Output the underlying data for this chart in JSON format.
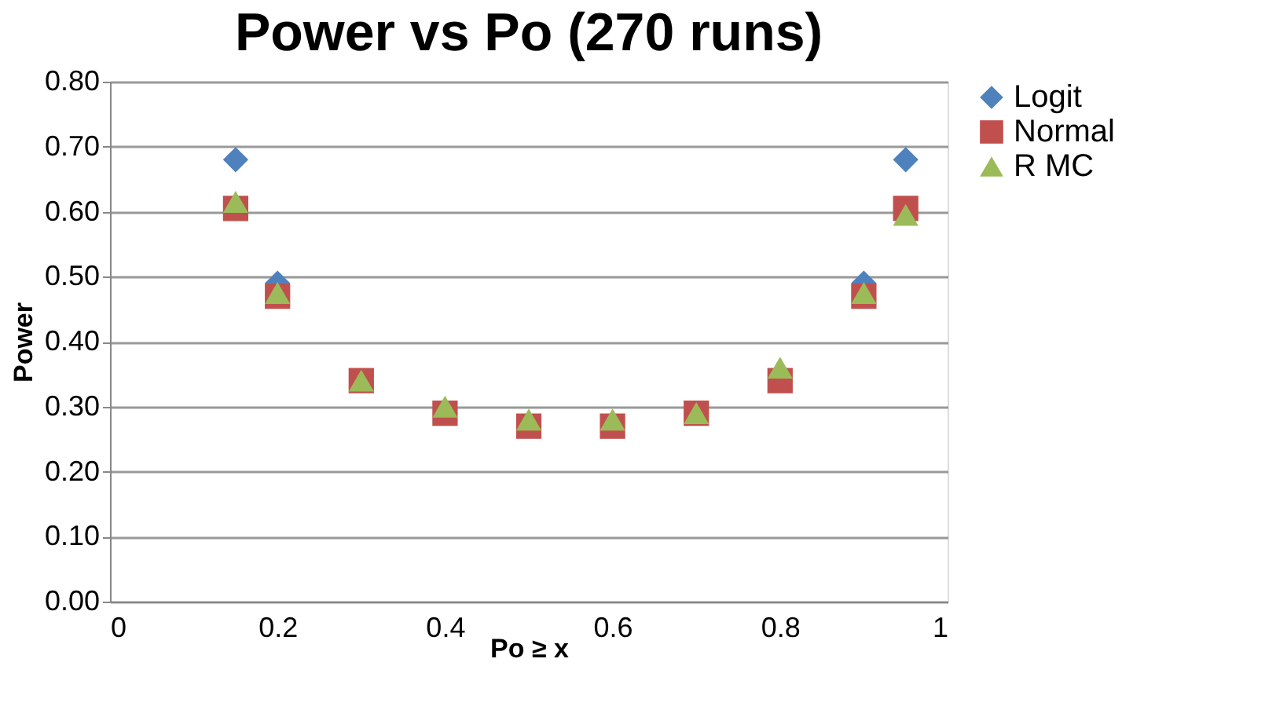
{
  "chart_data": {
    "type": "scatter",
    "title": "Power vs Po (270 runs)",
    "xlabel": "Po ≥ x",
    "ylabel": "Power",
    "x": [
      0.15,
      0.2,
      0.3,
      0.4,
      0.5,
      0.6,
      0.7,
      0.8,
      0.9,
      0.95
    ],
    "series": [
      {
        "name": "Logit",
        "color": "#4f81bd",
        "marker": "diamond",
        "values": [
          0.68,
          0.49,
          null,
          null,
          null,
          null,
          null,
          null,
          0.49,
          0.68
        ]
      },
      {
        "name": "Normal",
        "color": "#c0504d",
        "marker": "square",
        "values": [
          0.605,
          0.47,
          0.34,
          0.29,
          0.27,
          0.27,
          0.29,
          0.34,
          0.47,
          0.605
        ]
      },
      {
        "name": "R MC",
        "color": "#9bbb59",
        "marker": "triangle",
        "values": [
          0.615,
          0.475,
          0.34,
          0.3,
          0.28,
          0.28,
          0.29,
          0.36,
          0.475,
          0.595
        ]
      }
    ],
    "xlim": [
      0,
      1
    ],
    "xticks": [
      0,
      0.2,
      0.4,
      0.6,
      0.8,
      1
    ],
    "ylim": [
      0,
      0.8
    ],
    "yticks": [
      {
        "value": 0,
        "label": "0.00"
      },
      {
        "value": 0.1,
        "label": "0.10"
      },
      {
        "value": 0.2,
        "label": "0.20"
      },
      {
        "value": 0.3,
        "label": "0.30"
      },
      {
        "value": 0.4,
        "label": "0.40"
      },
      {
        "value": 0.5,
        "label": "0.50"
      },
      {
        "value": 0.6,
        "label": "0.60"
      },
      {
        "value": 0.7,
        "label": "0.70"
      },
      {
        "value": 0.8,
        "label": "0.80"
      }
    ],
    "grid": "y",
    "legend": "right"
  }
}
